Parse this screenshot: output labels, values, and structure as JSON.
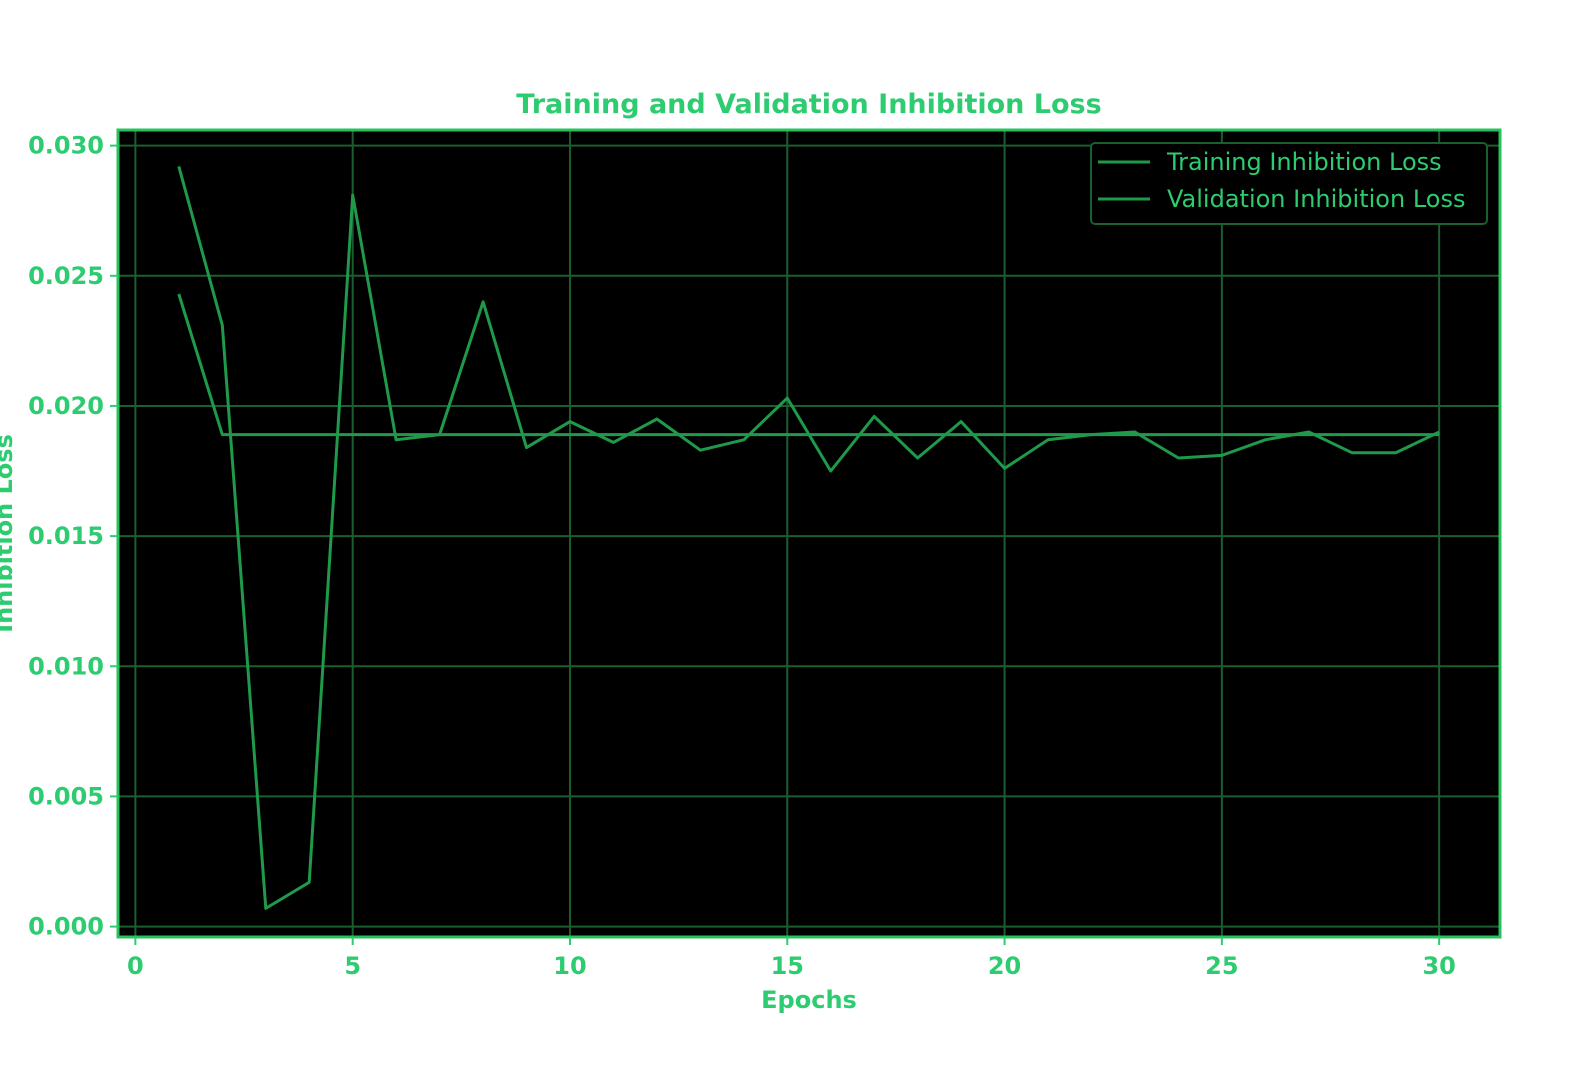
{
  "chart_data": {
    "type": "line",
    "title": "Training and Validation Inhibition Loss",
    "xlabel": "Epochs",
    "ylabel": "Inhibition Loss",
    "xlim": [
      -0.4,
      31.4
    ],
    "ylim": [
      -0.0004,
      0.0306
    ],
    "xticks": [
      0,
      5,
      10,
      15,
      20,
      25,
      30
    ],
    "yticks": [
      0.0,
      0.005,
      0.01,
      0.015,
      0.02,
      0.025,
      0.03
    ],
    "ytick_labels": [
      "0.000",
      "0.005",
      "0.010",
      "0.015",
      "0.020",
      "0.025",
      "0.030"
    ],
    "grid": true,
    "legend_position": "top-right",
    "colors": {
      "text": "#2ecc71",
      "line": "#1f9a4a",
      "grid": "#1b5e30",
      "axes_edge": "#27c25c",
      "background": "#000000",
      "figure": "#ffffff"
    },
    "series": [
      {
        "name": "Training Inhibition Loss",
        "x": [
          1,
          2,
          3,
          4,
          5,
          6,
          7,
          8,
          9,
          10,
          11,
          12,
          13,
          14,
          15,
          16,
          17,
          18,
          19,
          20,
          21,
          22,
          23,
          24,
          25,
          26,
          27,
          28,
          29,
          30
        ],
        "values": [
          0.0243,
          0.0189,
          0.0189,
          0.0189,
          0.0189,
          0.0189,
          0.0189,
          0.0189,
          0.0189,
          0.0189,
          0.0189,
          0.0189,
          0.0189,
          0.0189,
          0.0189,
          0.0189,
          0.0189,
          0.0189,
          0.0189,
          0.0189,
          0.0189,
          0.0189,
          0.0189,
          0.0189,
          0.0189,
          0.0189,
          0.0189,
          0.0189,
          0.0189,
          0.0189
        ]
      },
      {
        "name": "Validation Inhibition Loss",
        "x": [
          1,
          2,
          3,
          4,
          5,
          6,
          7,
          8,
          9,
          10,
          11,
          12,
          13,
          14,
          15,
          16,
          17,
          18,
          19,
          20,
          21,
          22,
          23,
          24,
          25,
          26,
          27,
          28,
          29,
          30
        ],
        "values": [
          0.0292,
          0.0231,
          0.0007,
          0.0017,
          0.0281,
          0.0187,
          0.0189,
          0.024,
          0.0184,
          0.0194,
          0.0186,
          0.0195,
          0.0183,
          0.0187,
          0.0203,
          0.0175,
          0.0196,
          0.018,
          0.0194,
          0.0176,
          0.0187,
          0.0189,
          0.019,
          0.018,
          0.0181,
          0.0187,
          0.019,
          0.0182,
          0.0182,
          0.019
        ]
      }
    ]
  }
}
